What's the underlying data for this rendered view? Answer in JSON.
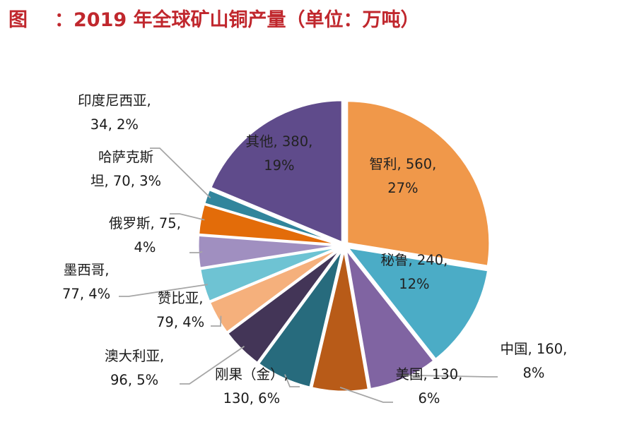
{
  "header": {
    "figure_label": "图",
    "title_text": "：2019 年全球矿山铜产量（单位：万吨）"
  },
  "chart_data": {
    "type": "pie",
    "title": "2019 年全球矿山铜产量（单位：万吨）",
    "unit": "万吨",
    "slices": [
      {
        "name": "智利",
        "value": 560,
        "percent": "27%",
        "color": "#f0984a",
        "label_line1": "智利, 560,",
        "label_line2": "27%"
      },
      {
        "name": "秘鲁",
        "value": 240,
        "percent": "12%",
        "color": "#4bacc6",
        "label_line1": "秘鲁, 240,",
        "label_line2": "12%"
      },
      {
        "name": "中国",
        "value": 160,
        "percent": "8%",
        "color": "#8064a2",
        "label_line1": "中国, 160,",
        "label_line2": "8%"
      },
      {
        "name": "美国",
        "value": 130,
        "percent": "6%",
        "color": "#b85b18",
        "label_line1": "美国, 130,",
        "label_line2": "6%"
      },
      {
        "name": "刚果（金）",
        "value": 130,
        "percent": "6%",
        "color": "#276b7d",
        "label_line1": "刚果（金）,",
        "label_line2": "130, 6%"
      },
      {
        "name": "澳大利亚",
        "value": 96,
        "percent": "5%",
        "color": "#433557",
        "label_line1": "澳大利亚,",
        "label_line2": "96, 5%"
      },
      {
        "name": "赞比亚",
        "value": 79,
        "percent": "4%",
        "color": "#f5b07c",
        "label_line1": "赞比亚,",
        "label_line2": "79, 4%"
      },
      {
        "name": "墨西哥",
        "value": 77,
        "percent": "4%",
        "color": "#6ec3d3",
        "label_line1": "墨西哥,",
        "label_line2": "77, 4%"
      },
      {
        "name": "俄罗斯",
        "value": 75,
        "percent": "4%",
        "color": "#a08fc0",
        "label_line1": "俄罗斯, 75,",
        "label_line2": "4%"
      },
      {
        "name": "哈萨克斯坦",
        "value": 70,
        "percent": "3%",
        "color": "#e36c09",
        "label_line1": "哈萨克斯",
        "label_line2": "坦, 70, 3%"
      },
      {
        "name": "印度尼西亚",
        "value": 34,
        "percent": "2%",
        "color": "#31859c",
        "label_line1": "印度尼西亚,",
        "label_line2": "34, 2%"
      },
      {
        "name": "其他",
        "value": 380,
        "percent": "19%",
        "color": "#5f4b8b",
        "label_line1": "其他, 380,",
        "label_line2": "19%"
      }
    ]
  }
}
